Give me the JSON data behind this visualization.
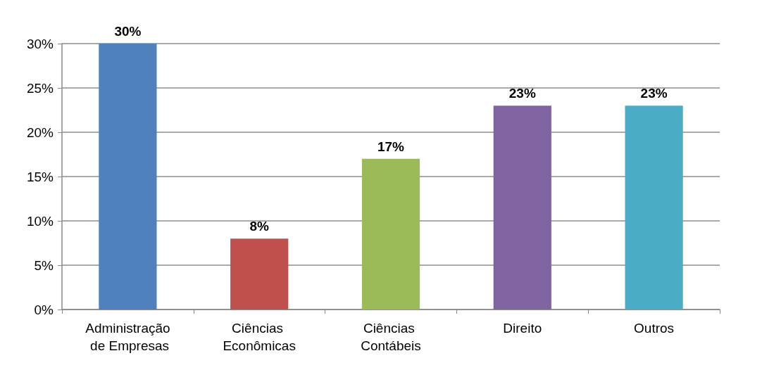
{
  "chart_data": {
    "type": "bar",
    "categories": [
      "Administração de Empresas",
      "Ciências Econômicas",
      "Ciências Contábeis",
      "Direito",
      "Outros"
    ],
    "values": [
      30,
      8,
      17,
      23,
      23
    ],
    "colors": [
      "#4f81bd",
      "#c0504d",
      "#9bbb59",
      "#8064a2",
      "#4bacc6"
    ],
    "value_labels": [
      "30%",
      "8%",
      "17%",
      "23%",
      "23%"
    ],
    "ylim": [
      0,
      30
    ],
    "yticks": [
      {
        "value": 0,
        "label": "0%"
      },
      {
        "value": 5,
        "label": "5%"
      },
      {
        "value": 10,
        "label": "10%"
      },
      {
        "value": 15,
        "label": "15%"
      },
      {
        "value": 20,
        "label": "20%"
      },
      {
        "value": 25,
        "label": "25%"
      },
      {
        "value": 30,
        "label": "30%"
      }
    ],
    "grid": "y"
  }
}
